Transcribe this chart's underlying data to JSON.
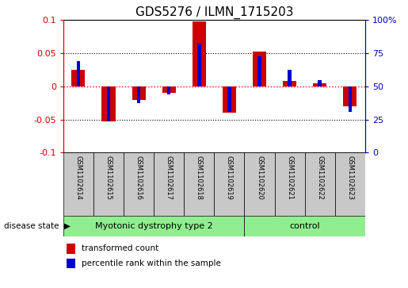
{
  "title": "GDS5276 / ILMN_1715203",
  "samples": [
    "GSM1102614",
    "GSM1102615",
    "GSM1102616",
    "GSM1102617",
    "GSM1102618",
    "GSM1102619",
    "GSM1102620",
    "GSM1102621",
    "GSM1102622",
    "GSM1102623"
  ],
  "red_values": [
    0.025,
    -0.053,
    -0.02,
    -0.01,
    0.098,
    -0.04,
    0.052,
    0.008,
    0.005,
    -0.03
  ],
  "blue_values": [
    0.038,
    -0.053,
    -0.025,
    -0.012,
    0.065,
    -0.038,
    0.045,
    0.025,
    0.01,
    -0.038
  ],
  "ylim": [
    -0.1,
    0.1
  ],
  "yticks_left": [
    -0.1,
    -0.05,
    0,
    0.05,
    0.1
  ],
  "ytick_labels_left": [
    "-0.1",
    "-0.05",
    "0",
    "0.05",
    "0.1"
  ],
  "yticks_right": [
    0,
    25,
    50,
    75,
    100
  ],
  "ytick_labels_right": [
    "0",
    "25",
    "50",
    "75",
    "100%"
  ],
  "group1_samples": 6,
  "group2_samples": 4,
  "group1_label": "Myotonic dystrophy type 2",
  "group2_label": "control",
  "group_color": "#90EE90",
  "disease_state_label": "disease state",
  "red_color": "#CC0000",
  "blue_color": "#0000CC",
  "background_color": "#ffffff",
  "xlabel_area_color": "#c8c8c8",
  "legend_red_label": "transformed count",
  "legend_blue_label": "percentile rank within the sample",
  "red_bar_width": 0.45,
  "blue_bar_width": 0.12
}
